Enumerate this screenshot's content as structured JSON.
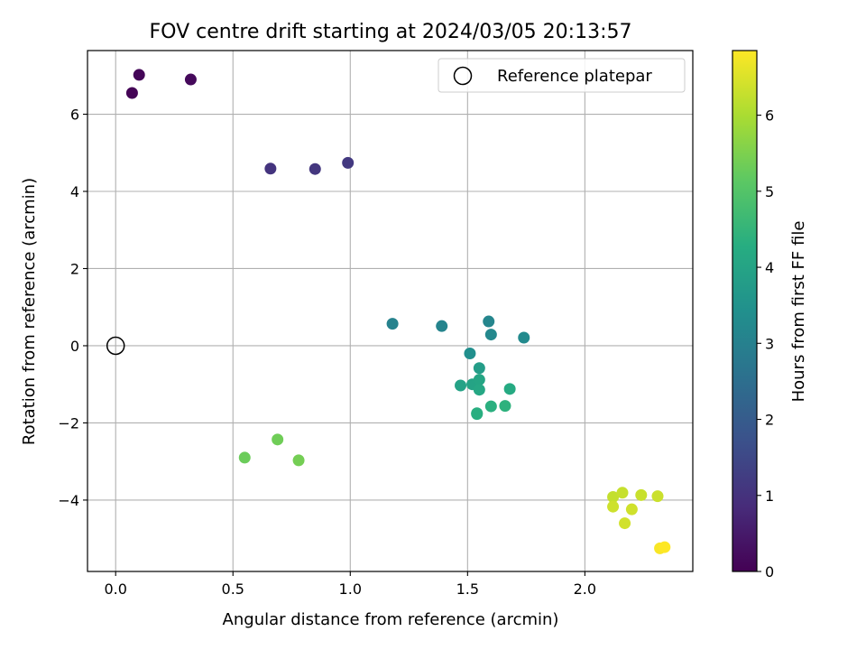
{
  "chart_data": {
    "type": "scatter",
    "title": "FOV centre drift starting at 2024/03/05 20:13:57",
    "xlabel": "Angular distance from reference (arcmin)",
    "ylabel": "Rotation from reference (arcmin)",
    "xlim": [
      -0.12,
      2.46
    ],
    "ylim": [
      -5.85,
      7.65
    ],
    "xticks": [
      0.0,
      0.5,
      1.0,
      1.5,
      2.0
    ],
    "xtick_labels": [
      "0.0",
      "0.5",
      "1.0",
      "1.5",
      "2.0"
    ],
    "yticks": [
      -4,
      -2,
      0,
      2,
      4,
      6
    ],
    "ytick_labels": [
      "−4",
      "−2",
      "0",
      "2",
      "4",
      "6"
    ],
    "grid": true,
    "legend": {
      "placement": "top-right",
      "entries": [
        "Reference platepar"
      ]
    },
    "reference_point": {
      "x": 0.0,
      "y": 0.0
    },
    "colorbar": {
      "label": "Hours from first FF file",
      "range": [
        0,
        6.85
      ],
      "ticks": [
        0,
        1,
        2,
        3,
        4,
        5,
        6
      ],
      "tick_labels": [
        "0",
        "1",
        "2",
        "3",
        "4",
        "5",
        "6"
      ],
      "colormap": "viridis"
    },
    "points": [
      {
        "x": 0.07,
        "y": 6.55,
        "hours": 0.05
      },
      {
        "x": 0.1,
        "y": 7.02,
        "hours": 0.1
      },
      {
        "x": 0.32,
        "y": 6.9,
        "hours": 0.15
      },
      {
        "x": 0.66,
        "y": 4.59,
        "hours": 1.05
      },
      {
        "x": 0.85,
        "y": 4.58,
        "hours": 1.1
      },
      {
        "x": 0.99,
        "y": 4.74,
        "hours": 1.15
      },
      {
        "x": 1.18,
        "y": 0.57,
        "hours": 3.05
      },
      {
        "x": 1.39,
        "y": 0.51,
        "hours": 3.1
      },
      {
        "x": 1.59,
        "y": 0.63,
        "hours": 3.15
      },
      {
        "x": 1.6,
        "y": 0.29,
        "hours": 3.2
      },
      {
        "x": 1.74,
        "y": 0.21,
        "hours": 3.25
      },
      {
        "x": 1.51,
        "y": -0.2,
        "hours": 3.4
      },
      {
        "x": 1.55,
        "y": -0.58,
        "hours": 3.8
      },
      {
        "x": 1.47,
        "y": -1.03,
        "hours": 3.95
      },
      {
        "x": 1.52,
        "y": -1.0,
        "hours": 4.0
      },
      {
        "x": 1.55,
        "y": -0.88,
        "hours": 4.05
      },
      {
        "x": 1.55,
        "y": -1.14,
        "hours": 4.1
      },
      {
        "x": 1.68,
        "y": -1.12,
        "hours": 4.2
      },
      {
        "x": 1.54,
        "y": -1.75,
        "hours": 4.3
      },
      {
        "x": 1.54,
        "y": -1.77,
        "hours": 4.32
      },
      {
        "x": 1.6,
        "y": -1.57,
        "hours": 4.35
      },
      {
        "x": 1.66,
        "y": -1.56,
        "hours": 4.4
      },
      {
        "x": 0.55,
        "y": -2.9,
        "hours": 5.3
      },
      {
        "x": 0.69,
        "y": -2.43,
        "hours": 5.35
      },
      {
        "x": 0.78,
        "y": -2.97,
        "hours": 5.4
      },
      {
        "x": 2.12,
        "y": -3.92,
        "hours": 6.25
      },
      {
        "x": 2.16,
        "y": -3.81,
        "hours": 6.28
      },
      {
        "x": 2.24,
        "y": -3.87,
        "hours": 6.3
      },
      {
        "x": 2.31,
        "y": -3.9,
        "hours": 6.32
      },
      {
        "x": 2.12,
        "y": -4.17,
        "hours": 6.35
      },
      {
        "x": 2.2,
        "y": -4.24,
        "hours": 6.38
      },
      {
        "x": 2.17,
        "y": -4.6,
        "hours": 6.4
      },
      {
        "x": 2.32,
        "y": -5.25,
        "hours": 6.8
      },
      {
        "x": 2.34,
        "y": -5.22,
        "hours": 6.85
      }
    ]
  }
}
